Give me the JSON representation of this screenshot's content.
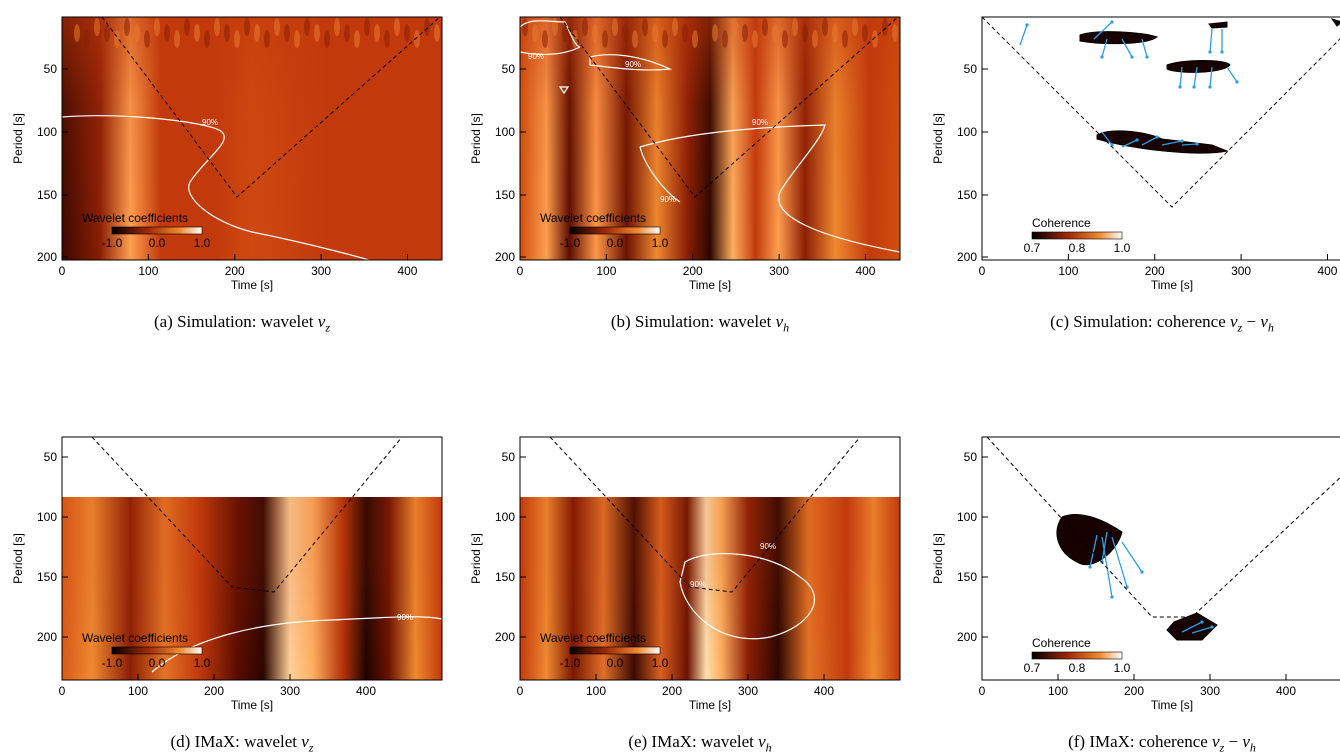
{
  "figure": {
    "common": {
      "ylabel": "Period [s]",
      "xlabel": "Time [s]",
      "yticks": [
        "50",
        "100",
        "150",
        "200"
      ],
      "contour_label": "90%"
    },
    "panels": [
      {
        "id": "a",
        "type": "wavelet",
        "caption": {
          "prefix": "(a) Simulation: wavelet ",
          "var": "v",
          "sub": "z",
          "minus_var": "",
          "minus_sub": ""
        },
        "xticks": [
          "0",
          "100",
          "200",
          "300",
          "400"
        ],
        "x_max": 440,
        "colorbar": {
          "title": "Wavelet coefficients",
          "ticks": [
            "-1.0",
            "0.0",
            "1.0"
          ]
        }
      },
      {
        "id": "b",
        "type": "wavelet",
        "caption": {
          "prefix": "(b) Simulation: wavelet ",
          "var": "v",
          "sub": "h",
          "minus_var": "",
          "minus_sub": ""
        },
        "xticks": [
          "0",
          "100",
          "200",
          "300",
          "400"
        ],
        "x_max": 440,
        "colorbar": {
          "title": "Wavelet coefficients",
          "ticks": [
            "-1.0",
            "0.0",
            "1.0"
          ]
        }
      },
      {
        "id": "c",
        "type": "coherence",
        "caption": {
          "prefix": "(c) Simulation: coherence ",
          "var": "v",
          "sub": "z",
          "minus_var": "v",
          "minus_sub": "h"
        },
        "xticks": [
          "0",
          "100",
          "200",
          "300",
          "400"
        ],
        "x_max": 440,
        "colorbar": {
          "title": "Coherence",
          "ticks": [
            "0.7",
            "0.8",
            "1.0"
          ]
        }
      },
      {
        "id": "d",
        "type": "wavelet",
        "caption": {
          "prefix": "(d) IMaX: wavelet ",
          "var": "v",
          "sub": "z",
          "minus_var": "",
          "minus_sub": ""
        },
        "xticks": [
          "0",
          "100",
          "200",
          "300",
          "400"
        ],
        "x_max": 500,
        "colorbar": {
          "title": "Wavelet coefficients",
          "ticks": [
            "-1.0",
            "0.0",
            "1.0"
          ]
        }
      },
      {
        "id": "e",
        "type": "wavelet",
        "caption": {
          "prefix": "(e) IMaX: wavelet ",
          "var": "v",
          "sub": "h",
          "minus_var": "",
          "minus_sub": ""
        },
        "xticks": [
          "0",
          "100",
          "200",
          "300",
          "400"
        ],
        "x_max": 500,
        "colorbar": {
          "title": "Wavelet coefficients",
          "ticks": [
            "-1.0",
            "0.0",
            "1.0"
          ]
        }
      },
      {
        "id": "f",
        "type": "coherence",
        "caption": {
          "prefix": "(f) IMaX: coherence ",
          "var": "v",
          "sub": "z",
          "minus_var": "v",
          "minus_sub": "h"
        },
        "xticks": [
          "0",
          "100",
          "200",
          "300",
          "400"
        ],
        "x_max": 500,
        "colorbar": {
          "title": "Coherence",
          "ticks": [
            "0.7",
            "0.8",
            "1.0"
          ]
        }
      }
    ]
  },
  "colors": {
    "base": "#c23a0c",
    "bright": "#ffb060",
    "dark": "#2a0500",
    "contour": "#ffffff",
    "cone": "#000000",
    "arrow": "#2aa0e8"
  }
}
